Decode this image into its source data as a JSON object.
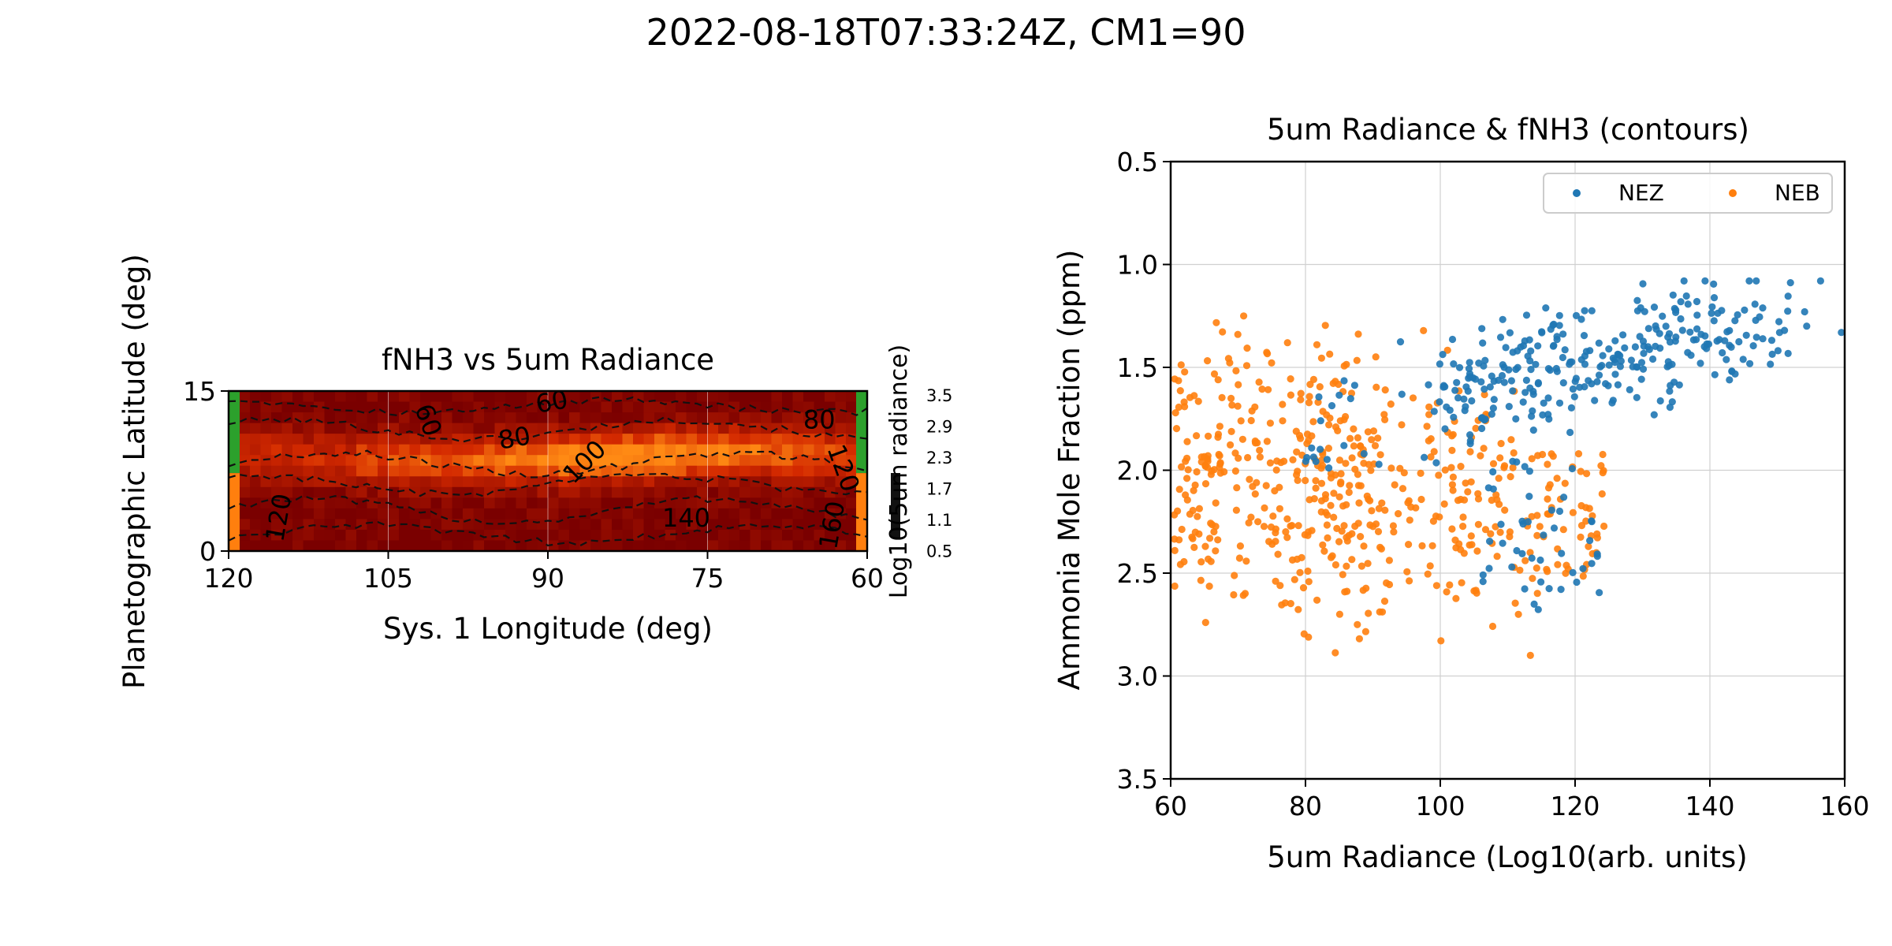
{
  "suptitle": "2022-08-18T07:33:24Z, CM1=90",
  "colors": {
    "nez": "#1f77b4",
    "neb": "#ff7f0e",
    "edge_green": "#2ca02c",
    "edge_orange": "#ff7f0e",
    "colorbar": "#111111",
    "heat_low": "#7a0000",
    "heat_mid": "#d42a00",
    "heat_high": "#ff8a14"
  },
  "chart_data": [
    {
      "type": "heatmap",
      "title": "fNH3 vs 5um Radiance",
      "xlabel": "Sys. 1 Longitude (deg)",
      "ylabel": "Planetographic Latitude (deg)",
      "xlim": [
        120,
        60
      ],
      "ylim": [
        0,
        15
      ],
      "xticks": [
        "120",
        "105",
        "90",
        "75",
        "60"
      ],
      "yticks": [
        "0",
        "15"
      ],
      "colorbar": {
        "label": "Log10(5um radiance)",
        "ticks": [
          "3.5",
          "2.9",
          "2.3",
          "1.7",
          "1.1",
          "0.5"
        ]
      },
      "contour_labels": [
        {
          "text": "60",
          "lon": 102,
          "lat": 12.0
        },
        {
          "text": "60",
          "lon": 89.5,
          "lat": 13.2
        },
        {
          "text": "80",
          "lon": 93,
          "lat": 9.8
        },
        {
          "text": "80",
          "lon": 64.5,
          "lat": 11.5
        },
        {
          "text": "100",
          "lon": 86,
          "lat": 7.8
        },
        {
          "text": "120",
          "lon": 114.5,
          "lat": 3.0
        },
        {
          "text": "120",
          "lon": 63,
          "lat": 7.5
        },
        {
          "text": "140",
          "lon": 77,
          "lat": 2.3
        },
        {
          "text": "160",
          "lon": 62.5,
          "lat": 2.3
        }
      ]
    },
    {
      "type": "scatter",
      "title": "5um Radiance & fNH3 (contours)",
      "xlabel": "5um Radiance (Log10(arb. units)",
      "ylabel": "Ammonia Mole Fraction (ppm)",
      "xlim": [
        60,
        160
      ],
      "ylim": [
        3.5,
        0.5
      ],
      "xticks": [
        "60",
        "80",
        "100",
        "120",
        "140",
        "160"
      ],
      "yticks": [
        "0.5",
        "1.0",
        "1.5",
        "2.0",
        "2.5",
        "3.0",
        "3.5"
      ],
      "grid": true,
      "legend": "top-right",
      "series": [
        {
          "name": "NEZ",
          "x_range": [
            80,
            160
          ],
          "y_range": [
            1.1,
            2.7
          ],
          "count": 360
        },
        {
          "name": "NEB",
          "x_range": [
            60,
            125
          ],
          "y_range": [
            1.25,
            2.9
          ],
          "count": 540
        }
      ]
    }
  ]
}
